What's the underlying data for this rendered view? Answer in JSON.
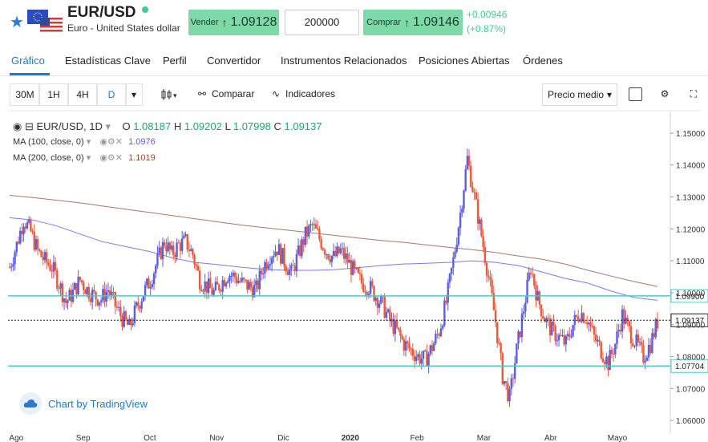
{
  "header": {
    "symbol": "EUR/USD",
    "description": "Euro - United States dollar",
    "flag_icons": [
      "eu-flag-icon",
      "us-flag-icon"
    ],
    "sell_label": "Vender",
    "sell_price": "1.09128",
    "quantity": "200000",
    "buy_label": "Comprar",
    "buy_price": "1.09146",
    "change_abs": "+0.00946",
    "change_pct": "(+0.87%)"
  },
  "tabs": [
    {
      "label": "Gráfico",
      "active": true
    },
    {
      "label": "Estadísticas Clave"
    },
    {
      "label": "Perfil"
    },
    {
      "label": "Convertidor"
    },
    {
      "label": "Instrumentos Relacionados"
    },
    {
      "label": "Posiciones Abiertas"
    },
    {
      "label": "Órdenes"
    }
  ],
  "toolbar": {
    "intervals": [
      "30M",
      "1H",
      "4H",
      "D"
    ],
    "active_interval": "D",
    "compare_label": "Comparar",
    "indicators_label": "Indicadores",
    "price_type": "Precio medio"
  },
  "legend": {
    "pair": "EUR/USD, 1D",
    "o_label": "O",
    "o_value": "1.08187",
    "h_label": "H",
    "h_value": "1.09202",
    "l_label": "L",
    "l_value": "1.07998",
    "c_label": "C",
    "c_value": "1.09137",
    "ma100_label": "MA (100, close, 0)",
    "ma100_value": "1.0976",
    "ma200_label": "MA (200, close, 0)",
    "ma200_value": "1.1019"
  },
  "badge": {
    "text": "Chart by TradingView"
  },
  "colors": {
    "up": "#5b5fe0",
    "down": "#ea5a3a",
    "ma100": "#7b7be8",
    "ma200": "#a8786a",
    "hline": "#4fc8c8",
    "accent": "#1e7bc8",
    "buy_sell": "#7ed9a8"
  },
  "chart_data": {
    "type": "candlestick",
    "y_ticks": [
      "1.15000",
      "1.14000",
      "1.13000",
      "1.12000",
      "1.11000",
      "1.10000",
      "1.09000",
      "1.08000",
      "1.07000",
      "1.06000"
    ],
    "ylim": [
      1.058,
      1.152
    ],
    "x_ticks": [
      "Ago",
      "Sep",
      "Oct",
      "Nov",
      "Dic",
      "2020",
      "Feb",
      "Mar",
      "Abr",
      "Mayo"
    ],
    "horizontal_lines": [
      {
        "value": 1.099,
        "label": "1.09900"
      },
      {
        "value": 1.07704,
        "label": "1.07704"
      }
    ],
    "last_price": {
      "value": 1.09137,
      "label": "1.09137"
    },
    "close_path": [
      1.108,
      1.115,
      1.123,
      1.119,
      1.113,
      1.11,
      1.108,
      1.103,
      1.097,
      1.1,
      1.104,
      1.101,
      1.099,
      1.098,
      1.101,
      1.096,
      1.092,
      1.089,
      1.095,
      1.1,
      1.104,
      1.11,
      1.116,
      1.112,
      1.115,
      1.116,
      1.112,
      1.104,
      1.102,
      1.1,
      1.103,
      1.106,
      1.105,
      1.103,
      1.102,
      1.101,
      1.108,
      1.112,
      1.114,
      1.11,
      1.106,
      1.112,
      1.118,
      1.121,
      1.117,
      1.113,
      1.111,
      1.113,
      1.11,
      1.106,
      1.103,
      1.102,
      1.099,
      1.096,
      1.091,
      1.088,
      1.084,
      1.082,
      1.08,
      1.079,
      1.083,
      1.088,
      1.097,
      1.11,
      1.125,
      1.142,
      1.13,
      1.118,
      1.105,
      1.091,
      1.074,
      1.067,
      1.082,
      1.095,
      1.108,
      1.098,
      1.092,
      1.088,
      1.086,
      1.084,
      1.09,
      1.094,
      1.092,
      1.086,
      1.082,
      1.078,
      1.084,
      1.093,
      1.088,
      1.084,
      1.08,
      1.084,
      1.091
    ],
    "ma100": [
      1.1235,
      1.1228,
      1.121,
      1.1185,
      1.116,
      1.1145,
      1.113,
      1.111,
      1.1095,
      1.1088,
      1.108,
      1.1073,
      1.107,
      1.107,
      1.1072,
      1.1078,
      1.1085,
      1.109,
      1.1092,
      1.1095,
      1.11,
      1.1095,
      1.1085,
      1.1065,
      1.1045,
      1.103,
      1.1005,
      1.0985,
      1.0976
    ],
    "ma200": [
      1.1305,
      1.1298,
      1.129,
      1.1282,
      1.1272,
      1.1262,
      1.1252,
      1.1242,
      1.1232,
      1.1222,
      1.1212,
      1.1204,
      1.1196,
      1.1188,
      1.118,
      1.1172,
      1.1164,
      1.1158,
      1.115,
      1.1142,
      1.1135,
      1.1126,
      1.1115,
      1.1105,
      1.109,
      1.107,
      1.1052,
      1.1035,
      1.1019
    ]
  }
}
